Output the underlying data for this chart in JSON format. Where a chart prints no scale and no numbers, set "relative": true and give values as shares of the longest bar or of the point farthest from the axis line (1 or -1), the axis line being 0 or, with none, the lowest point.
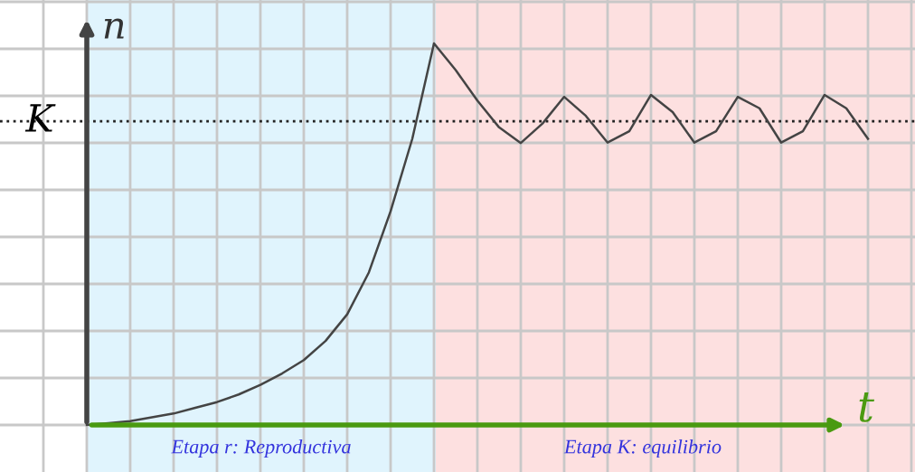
{
  "chart_data": {
    "type": "line",
    "relative": true,
    "xlabel": "t",
    "ylabel": "n",
    "categories": [
      null,
      null,
      null,
      null,
      null,
      null,
      null,
      null,
      null,
      null,
      null,
      null,
      null,
      null,
      null,
      null,
      null,
      null,
      null,
      null,
      null,
      null,
      null,
      null,
      null,
      null,
      null,
      null,
      null,
      null,
      null,
      null,
      null,
      null,
      null,
      null,
      null
    ],
    "series": [
      {
        "color": "#444444",
        "values": [
          0,
          0.005,
          0.01,
          0.02,
          0.03,
          0.045,
          0.06,
          0.08,
          0.105,
          0.135,
          0.17,
          0.22,
          0.29,
          0.4,
          0.56,
          0.75,
          1,
          0.93,
          0.85,
          0.78,
          0.739,
          0.79,
          0.86,
          0.81,
          0.74,
          0.77,
          0.865,
          0.82,
          0.74,
          0.77,
          0.86,
          0.83,
          0.74,
          0.77,
          0.865,
          0.83,
          0.75
        ]
      }
    ],
    "grid": true,
    "marker": "none",
    "line_style": "solid",
    "ref_lines": [
      {
        "axis": "y",
        "value": 0.796,
        "label": "K",
        "color": "#222222",
        "line_style": "dotted"
      }
    ],
    "annotations": [
      "Etapa r: Reproductiva",
      "Etapa K: equilibrio"
    ]
  }
}
